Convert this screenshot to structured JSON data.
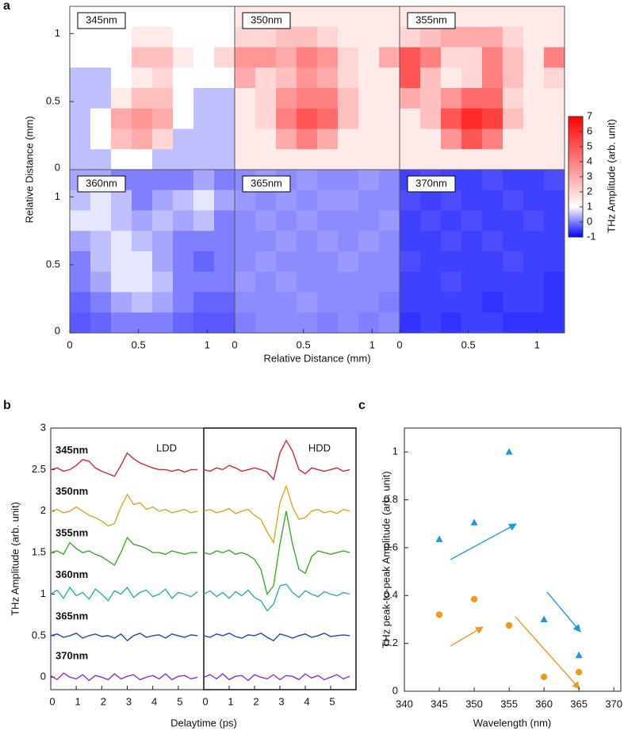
{
  "panel_labels": [
    "a",
    "b",
    "c"
  ],
  "chart_data": [
    {
      "type": "heatmap",
      "xlabel": "Relative Distance (mm)",
      "ylabel": "Relative Distance (mm)",
      "xlim": [
        0,
        1.2
      ],
      "ylim": [
        0,
        1.2
      ],
      "xticks": [
        0,
        0.5,
        1
      ],
      "yticks": [
        0,
        0.5,
        1
      ],
      "colorbar": {
        "label": "THz Amplitude (arb. unit)",
        "lim": [
          -1,
          7
        ],
        "ticks": [
          -1,
          0,
          1,
          2,
          3,
          4,
          5,
          6,
          7
        ],
        "colors": [
          "#0000ff",
          "#ffffff",
          "#ff0000"
        ],
        "stops": [
          -1,
          1,
          7
        ]
      },
      "panels": [
        {
          "label": "345nm",
          "values": [
            [
              1,
              1,
              1,
              1,
              1,
              1,
              1,
              1
            ],
            [
              1,
              1,
              1,
              1.5,
              1.5,
              1,
              1,
              1
            ],
            [
              1,
              1,
              1,
              2.5,
              2.5,
              1.5,
              1,
              2
            ],
            [
              0.5,
              0.5,
              1,
              1.5,
              2,
              1,
              1,
              1
            ],
            [
              0.5,
              0.5,
              1.5,
              2.5,
              2.5,
              1,
              0.5,
              0.5
            ],
            [
              0.5,
              1,
              3,
              3.5,
              3,
              1,
              0.5,
              0.5
            ],
            [
              0.5,
              1,
              2.5,
              3,
              2,
              0.5,
              0.5,
              0.5
            ],
            [
              0.5,
              0.5,
              1,
              1,
              0.5,
              0.5,
              0.5,
              0.5
            ]
          ]
        },
        {
          "label": "350nm",
          "values": [
            [
              1.5,
              1.5,
              1.5,
              1.5,
              1.5,
              1.5,
              1.5,
              1.5
            ],
            [
              2,
              2,
              2.5,
              2.5,
              2,
              1.5,
              1.5,
              1.5
            ],
            [
              3.5,
              3.5,
              3,
              4,
              3.5,
              2,
              1.5,
              3
            ],
            [
              3,
              2,
              2.5,
              3.5,
              3,
              2,
              1.5,
              1.5
            ],
            [
              1.5,
              2,
              3.5,
              4,
              4,
              2.5,
              1.5,
              1.5
            ],
            [
              1.5,
              2,
              4,
              5,
              4.5,
              2.5,
              1.5,
              1.5
            ],
            [
              1.5,
              1.5,
              3,
              4,
              3,
              1.5,
              1.5,
              1.5
            ],
            [
              1.5,
              1.5,
              1.5,
              1.5,
              1.5,
              1.5,
              1.5,
              1.5
            ]
          ]
        },
        {
          "label": "355nm",
          "values": [
            [
              1.5,
              1.5,
              1.5,
              1.5,
              1.5,
              1.5,
              1.5,
              1.5
            ],
            [
              2,
              2.5,
              3,
              3,
              3,
              2,
              1.5,
              1.5
            ],
            [
              5,
              4,
              2,
              2,
              4,
              2.5,
              1.5,
              4
            ],
            [
              5,
              2.5,
              1.5,
              2,
              4,
              2.5,
              1.5,
              2
            ],
            [
              3,
              2.5,
              3.5,
              4.5,
              4.5,
              2,
              1.5,
              1.5
            ],
            [
              1.5,
              2.5,
              5,
              6,
              5.5,
              2.5,
              1.5,
              1.5
            ],
            [
              1.5,
              1.5,
              3.5,
              5,
              4,
              1.5,
              1.5,
              1.5
            ],
            [
              1.5,
              1.5,
              1.5,
              1.5,
              1.5,
              1.5,
              1.5,
              1.5
            ]
          ]
        },
        {
          "label": "360nm",
          "values": [
            [
              0.3,
              0.3,
              0,
              0,
              0,
              0,
              0.3,
              0
            ],
            [
              0.5,
              0.8,
              0.5,
              0,
              0.3,
              0.5,
              0.8,
              0.3
            ],
            [
              0.8,
              0.8,
              0.5,
              0.3,
              0.5,
              0.3,
              0.5,
              0
            ],
            [
              0.3,
              0.5,
              0.8,
              0.5,
              0.3,
              0,
              0,
              0
            ],
            [
              0,
              0.5,
              0.8,
              0.8,
              0.3,
              0,
              -0.2,
              0
            ],
            [
              0,
              0.3,
              0.8,
              0.8,
              0.5,
              0,
              0,
              0
            ],
            [
              -0.2,
              0,
              0.3,
              0.5,
              0.3,
              0,
              -0.2,
              -0.2
            ],
            [
              -0.3,
              -0.2,
              0,
              0,
              0,
              -0.2,
              -0.3,
              -0.3
            ]
          ]
        },
        {
          "label": "365nm",
          "values": [
            [
              0.1,
              0.2,
              0.1,
              0.2,
              0.1,
              0.1,
              0.2,
              0.1
            ],
            [
              0.2,
              0.1,
              0.2,
              0.1,
              0.2,
              0.2,
              0.1,
              0.1
            ],
            [
              0.1,
              0.2,
              0.1,
              0.2,
              0.1,
              0.1,
              0.1,
              0.2
            ],
            [
              0.1,
              0.1,
              0.2,
              0.1,
              0.2,
              0.1,
              0.2,
              0.1
            ],
            [
              0.1,
              0.2,
              0.1,
              0.1,
              0.1,
              0.2,
              0.1,
              0.1
            ],
            [
              0.2,
              0.1,
              0.2,
              0.1,
              0.1,
              0.1,
              0.1,
              0.1
            ],
            [
              0.1,
              0.1,
              0.1,
              0.2,
              0.1,
              0.1,
              0.1,
              0
            ],
            [
              0,
              0.1,
              0.1,
              0.1,
              0,
              0.1,
              0,
              0.1
            ]
          ]
        },
        {
          "label": "370nm",
          "values": [
            [
              -0.5,
              -0.4,
              -0.5,
              -0.5,
              -0.4,
              -0.5,
              -0.5,
              -0.4
            ],
            [
              -0.4,
              -0.5,
              -0.4,
              -0.5,
              -0.5,
              -0.4,
              -0.5,
              -0.5
            ],
            [
              -0.5,
              -0.4,
              -0.5,
              -0.4,
              -0.5,
              -0.5,
              -0.4,
              -0.5
            ],
            [
              -0.5,
              -0.5,
              -0.4,
              -0.5,
              -0.4,
              -0.5,
              -0.5,
              -0.5
            ],
            [
              -0.4,
              -0.5,
              -0.5,
              -0.5,
              -0.5,
              -0.4,
              -0.5,
              -0.5
            ],
            [
              -0.5,
              -0.5,
              -0.4,
              -0.5,
              -0.5,
              -0.5,
              -0.5,
              -0.6
            ],
            [
              -0.5,
              -0.5,
              -0.5,
              -0.5,
              -0.6,
              -0.5,
              -0.5,
              -0.6
            ],
            [
              -0.6,
              -0.5,
              -0.6,
              -0.5,
              -0.5,
              -0.6,
              -0.6,
              -0.6
            ]
          ]
        }
      ]
    },
    {
      "type": "line",
      "annotation": "LDD",
      "xlabel": "Delaytime (ps)",
      "ylabel": "THz Amplitude (arb. unit)",
      "xlim": [
        0,
        6
      ],
      "ylim": [
        -0.15,
        3
      ],
      "xticks": [
        0,
        1,
        2,
        3,
        4,
        5
      ],
      "yticks": [
        0,
        0.5,
        1,
        1.5,
        2,
        2.5,
        3
      ],
      "x": [
        0,
        0.25,
        0.5,
        0.75,
        1,
        1.25,
        1.5,
        1.75,
        2,
        2.25,
        2.5,
        2.75,
        3,
        3.25,
        3.5,
        3.75,
        4,
        4.25,
        4.5,
        4.75,
        5,
        5.25,
        5.5,
        5.75
      ],
      "series": [
        {
          "name": "345nm",
          "color": "#d7262b",
          "values": [
            2.5,
            2.52,
            2.48,
            2.5,
            2.55,
            2.62,
            2.6,
            2.52,
            2.48,
            2.45,
            2.42,
            2.55,
            2.7,
            2.63,
            2.58,
            2.55,
            2.52,
            2.5,
            2.5,
            2.48,
            2.5,
            2.47,
            2.5,
            2.5
          ]
        },
        {
          "name": "350nm",
          "color": "#e2a51c",
          "values": [
            2,
            2.02,
            1.98,
            2,
            2.05,
            2,
            1.95,
            1.92,
            1.88,
            1.82,
            1.85,
            2.05,
            2.2,
            2.08,
            2.1,
            2.02,
            2.05,
            2,
            2.02,
            1.98,
            2,
            2.02,
            1.98,
            2
          ]
        },
        {
          "name": "355nm",
          "color": "#3aab2a",
          "values": [
            1.5,
            1.52,
            1.48,
            1.62,
            1.55,
            1.5,
            1.52,
            1.48,
            1.45,
            1.4,
            1.35,
            1.5,
            1.68,
            1.6,
            1.58,
            1.55,
            1.5,
            1.5,
            1.48,
            1.52,
            1.5,
            1.48,
            1.5,
            1.5
          ]
        },
        {
          "name": "360nm",
          "color": "#25b3a6",
          "values": [
            1,
            1.05,
            0.95,
            1.08,
            0.98,
            1.02,
            0.94,
            1.06,
            1,
            0.92,
            1.04,
            1,
            1.08,
            0.96,
            1.02,
            1.05,
            0.97,
            1,
            1.06,
            0.95,
            1.02,
            1,
            0.97,
            1.03
          ]
        },
        {
          "name": "365nm",
          "color": "#2443d0",
          "values": [
            0.5,
            0.52,
            0.48,
            0.5,
            0.53,
            0.47,
            0.5,
            0.52,
            0.49,
            0.5,
            0.47,
            0.52,
            0.44,
            0.5,
            0.53,
            0.48,
            0.5,
            0.51,
            0.47,
            0.52,
            0.5,
            0.48,
            0.51,
            0.5
          ]
        },
        {
          "name": "370nm",
          "color": "#8b2fd9",
          "values": [
            0.02,
            -0.03,
            0.05,
            0,
            -0.02,
            0.03,
            -0.04,
            0.02,
            0,
            -0.03,
            0.04,
            -0.02,
            0.01,
            0.03,
            -0.03,
            0,
            0.02,
            -0.02,
            0.04,
            -0.03,
            0.01,
            0.02,
            -0.02,
            0
          ]
        }
      ]
    },
    {
      "type": "line",
      "annotation": "HDD",
      "xlim": [
        0,
        6
      ],
      "ylim": [
        -0.15,
        3
      ],
      "xticks": [
        0,
        1,
        2,
        3,
        4,
        5
      ],
      "x": [
        0,
        0.25,
        0.5,
        0.75,
        1,
        1.25,
        1.5,
        1.75,
        2,
        2.25,
        2.5,
        2.75,
        3,
        3.25,
        3.5,
        3.75,
        4,
        4.25,
        4.5,
        4.75,
        5,
        5.25,
        5.5,
        5.75
      ],
      "series": [
        {
          "color": "#d7262b",
          "values": [
            2.5,
            2.48,
            2.52,
            2.5,
            2.55,
            2.52,
            2.48,
            2.5,
            2.52,
            2.5,
            2.47,
            2.38,
            2.7,
            2.85,
            2.72,
            2.5,
            2.45,
            2.52,
            2.5,
            2.48,
            2.5,
            2.52,
            2.48,
            2.5
          ]
        },
        {
          "color": "#e2a51c",
          "values": [
            2,
            2.02,
            1.98,
            2,
            2.03,
            1.97,
            2,
            2.02,
            1.95,
            1.9,
            1.75,
            1.62,
            2.1,
            2.3,
            2.05,
            1.9,
            1.92,
            2,
            2.02,
            1.98,
            2,
            1.97,
            2.02,
            2
          ]
        },
        {
          "color": "#3aab2a",
          "values": [
            1.5,
            1.48,
            1.52,
            1.5,
            1.53,
            1.48,
            1.5,
            1.47,
            1.42,
            1.3,
            1,
            1.1,
            1.6,
            2,
            1.6,
            1.3,
            1.25,
            1.45,
            1.52,
            1.5,
            1.48,
            1.5,
            1.52,
            1.5
          ]
        },
        {
          "color": "#25b3a6",
          "values": [
            1,
            1.04,
            0.97,
            1.02,
            0.95,
            1.03,
            0.98,
            1.05,
            0.96,
            0.92,
            0.8,
            0.88,
            1.1,
            1.12,
            1.02,
            0.96,
            1.04,
            1,
            0.97,
            1.03,
            1,
            0.98,
            1.02,
            1
          ]
        },
        {
          "color": "#2443d0",
          "values": [
            0.5,
            0.48,
            0.52,
            0.5,
            0.53,
            0.49,
            0.47,
            0.51,
            0.5,
            0.53,
            0.48,
            0.44,
            0.52,
            0.5,
            0.47,
            0.5,
            0.52,
            0.48,
            0.5,
            0.53,
            0.49,
            0.5,
            0.51,
            0.5
          ]
        },
        {
          "color": "#8b2fd9",
          "values": [
            0,
            0.03,
            -0.02,
            0.04,
            -0.03,
            0.01,
            0.02,
            -0.04,
            0.03,
            0,
            -0.02,
            0.03,
            -0.03,
            0.02,
            0.01,
            -0.03,
            0.04,
            -0.01,
            0.02,
            -0.03,
            0,
            0.03,
            -0.02,
            0.01
          ]
        }
      ]
    },
    {
      "type": "scatter",
      "xlabel": "Wavelength (nm)",
      "ylabel": "THz peak-to-peak Amplitude (arb. unit)",
      "xlim": [
        340,
        371
      ],
      "ylim": [
        0,
        1.1
      ],
      "xticks": [
        340,
        345,
        350,
        355,
        360,
        365,
        370
      ],
      "yticks": [
        0,
        0.2,
        0.4,
        0.6,
        0.8,
        1
      ],
      "series": [
        {
          "marker": "triangle",
          "color": "#1e9be0",
          "x": [
            345,
            350,
            355,
            360,
            365
          ],
          "values": [
            0.635,
            0.705,
            1,
            0.3,
            0.15
          ]
        },
        {
          "marker": "circle",
          "color": "#f39a1e",
          "x": [
            345,
            350,
            355,
            360,
            365
          ],
          "values": [
            0.32,
            0.385,
            0.275,
            0.06,
            0.08
          ]
        }
      ]
    }
  ]
}
